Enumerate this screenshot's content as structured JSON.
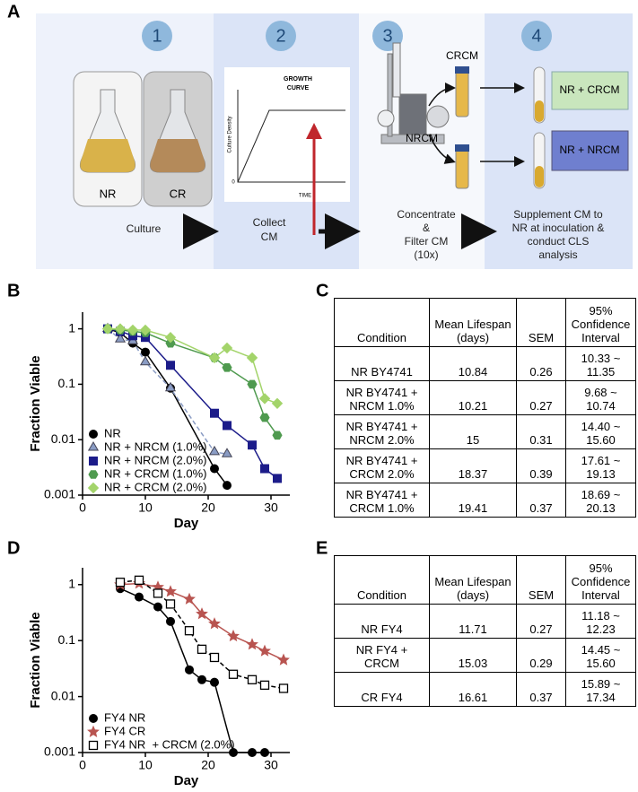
{
  "panel_labels": [
    "A",
    "B",
    "C",
    "D",
    "E"
  ],
  "panel_a": {
    "steps": [
      "1",
      "2",
      "3",
      "4"
    ],
    "flasks": [
      "NR",
      "CR"
    ],
    "growth_curve": {
      "title": [
        "GROWTH",
        "CURVE"
      ],
      "ylabel": "Culture Density",
      "xlabel": "TIME",
      "origin": "0"
    },
    "tubes": [
      "CRCM",
      "NRCM"
    ],
    "results": [
      "NR + CRCM",
      "NR + NRCM"
    ],
    "captions": [
      [
        "Culture"
      ],
      [
        "Collect",
        "CM"
      ],
      [
        "Concentrate",
        "&",
        "Filter CM",
        "(10x)"
      ],
      [
        "Supplement CM to",
        "NR at inoculation &",
        "conduct CLS",
        "analysis"
      ]
    ]
  },
  "chart_data": [
    {
      "type": "line",
      "xlabel": "Day",
      "ylabel": "Fraction Viable",
      "xlim": [
        0,
        33
      ],
      "xticks": [
        0,
        10,
        20,
        30
      ],
      "ylim": [
        0.001,
        2
      ],
      "yticks": [
        0.001,
        0.01,
        0.1,
        1
      ],
      "yscale": "log",
      "legend": "lower left",
      "series": [
        {
          "name": "NR",
          "color": "#000000",
          "marker": "circle",
          "dashed": false,
          "x": [
            4,
            6,
            8,
            10,
            14,
            21,
            23
          ],
          "values": [
            1,
            0.85,
            0.55,
            0.38,
            0.085,
            0.003,
            0.0015
          ]
        },
        {
          "name": "NR + NRCM (1.0%)",
          "color": "#8a9cc4",
          "marker": "triangle",
          "dashed": true,
          "x": [
            4,
            6,
            8,
            10,
            14,
            21,
            23
          ],
          "values": [
            1,
            0.65,
            0.6,
            0.25,
            0.085,
            0.006,
            0.0055
          ]
        },
        {
          "name": "NR + NRCM (2.0%)",
          "color": "#1c1c8a",
          "marker": "square",
          "dashed": false,
          "x": [
            4,
            6,
            8,
            10,
            14,
            21,
            23,
            27,
            29,
            31
          ],
          "values": [
            1,
            0.9,
            0.75,
            0.7,
            0.22,
            0.03,
            0.018,
            0.008,
            0.003,
            0.002
          ]
        },
        {
          "name": "NR + CRCM (1.0%)",
          "color": "#4f9a4f",
          "marker": "hexagon",
          "dashed": false,
          "x": [
            4,
            6,
            8,
            10,
            14,
            21,
            23,
            27,
            29,
            31
          ],
          "values": [
            1,
            0.95,
            0.9,
            0.85,
            0.55,
            0.3,
            0.2,
            0.1,
            0.025,
            0.012
          ]
        },
        {
          "name": "NR + CRCM (2.0%)",
          "color": "#a3d46a",
          "marker": "diamond",
          "dashed": false,
          "x": [
            4,
            6,
            8,
            10,
            14,
            21,
            23,
            27,
            29,
            31
          ],
          "values": [
            1,
            1,
            0.95,
            0.95,
            0.7,
            0.3,
            0.45,
            0.3,
            0.055,
            0.045
          ]
        }
      ]
    },
    {
      "type": "line",
      "xlabel": "Day",
      "ylabel": "Fraction Viable",
      "xlim": [
        0,
        33
      ],
      "xticks": [
        0,
        10,
        20,
        30
      ],
      "ylim": [
        0.001,
        2
      ],
      "yticks": [
        0.001,
        0.01,
        0.1,
        1
      ],
      "yscale": "log",
      "legend": "lower left",
      "series": [
        {
          "name": "FY4 NR",
          "color": "#000000",
          "marker": "circle",
          "dashed": false,
          "x": [
            6,
            9,
            12,
            14,
            17,
            19,
            21,
            24,
            27,
            29
          ],
          "values": [
            0.85,
            0.6,
            0.4,
            0.22,
            0.03,
            0.02,
            0.018,
            0.001,
            0.001,
            0.001
          ]
        },
        {
          "name": "FY4 CR",
          "color": "#b85450",
          "marker": "star",
          "dashed": false,
          "x": [
            6,
            9,
            12,
            14,
            17,
            19,
            21,
            24,
            27,
            29,
            32
          ],
          "values": [
            1,
            1.05,
            0.9,
            0.75,
            0.55,
            0.3,
            0.2,
            0.12,
            0.085,
            0.065,
            0.045
          ]
        },
        {
          "name": "FY4 NR  + CRCM (2.0%)",
          "color": "#000000",
          "marker": "square-open",
          "dashed": true,
          "x": [
            6,
            9,
            12,
            14,
            17,
            19,
            21,
            24,
            27,
            29,
            32
          ],
          "values": [
            1.1,
            1.2,
            0.7,
            0.45,
            0.15,
            0.07,
            0.05,
            0.025,
            0.02,
            0.016,
            0.014
          ]
        }
      ]
    }
  ],
  "tables": {
    "C": {
      "header": [
        "Condition",
        "Mean Lifespan (days)",
        "SEM",
        "95% Confidence Interval"
      ],
      "rows": [
        [
          "NR BY4741",
          "10.84",
          "0.26",
          "10.33 ~ 11.35"
        ],
        [
          "NR BY4741 + NRCM 1.0%",
          "10.21",
          "0.27",
          "9.68 ~ 10.74"
        ],
        [
          "NR BY4741 + NRCM 2.0%",
          "15",
          "0.31",
          "14.40 ~ 15.60"
        ],
        [
          "NR BY4741 + CRCM 2.0%",
          "18.37",
          "0.39",
          "17.61 ~ 19.13"
        ],
        [
          "NR BY4741 + CRCM 1.0%",
          "19.41",
          "0.37",
          "18.69 ~ 20.13"
        ]
      ]
    },
    "E": {
      "header": [
        "Condition",
        "Mean Lifespan (days)",
        "SEM",
        "95% Confidence Interval"
      ],
      "rows": [
        [
          "NR FY4",
          "11.71",
          "0.27",
          "11.18 ~ 12.23"
        ],
        [
          "NR FY4 + CRCM",
          "15.03",
          "0.29",
          "14.45 ~ 15.60"
        ],
        [
          "CR FY4",
          "16.61",
          "0.37",
          "15.89 ~ 17.34"
        ]
      ]
    }
  }
}
